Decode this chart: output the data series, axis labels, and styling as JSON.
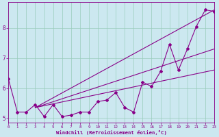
{
  "xlabel": "Windchill (Refroidissement éolien,°C)",
  "bg_color": "#cce8f0",
  "line_color": "#880088",
  "grid_color": "#99ccbb",
  "x_data": [
    0,
    1,
    2,
    3,
    4,
    5,
    6,
    7,
    8,
    9,
    10,
    11,
    12,
    13,
    14,
    15,
    16,
    17,
    18,
    19,
    20,
    21,
    22,
    23
  ],
  "y_zigzag": [
    6.3,
    5.2,
    5.2,
    5.45,
    5.05,
    5.45,
    5.05,
    5.1,
    5.2,
    5.2,
    5.55,
    5.6,
    5.85,
    5.35,
    5.2,
    6.2,
    6.05,
    6.55,
    7.45,
    6.6,
    7.3,
    8.05,
    8.6,
    8.55
  ],
  "straight_lines": [
    {
      "x_start": 3,
      "y_start": 5.35,
      "x_end": 23,
      "y_end": 8.6
    },
    {
      "x_start": 3,
      "y_start": 5.35,
      "x_end": 23,
      "y_end": 7.3
    },
    {
      "x_start": 3,
      "y_start": 5.35,
      "x_end": 23,
      "y_end": 6.6
    }
  ],
  "xlim": [
    0,
    23
  ],
  "ylim": [
    4.85,
    8.85
  ],
  "yticks": [
    5,
    6,
    7,
    8
  ],
  "xticks": [
    0,
    1,
    2,
    3,
    4,
    5,
    6,
    7,
    8,
    9,
    10,
    11,
    12,
    13,
    14,
    15,
    16,
    17,
    18,
    19,
    20,
    21,
    22,
    23
  ]
}
